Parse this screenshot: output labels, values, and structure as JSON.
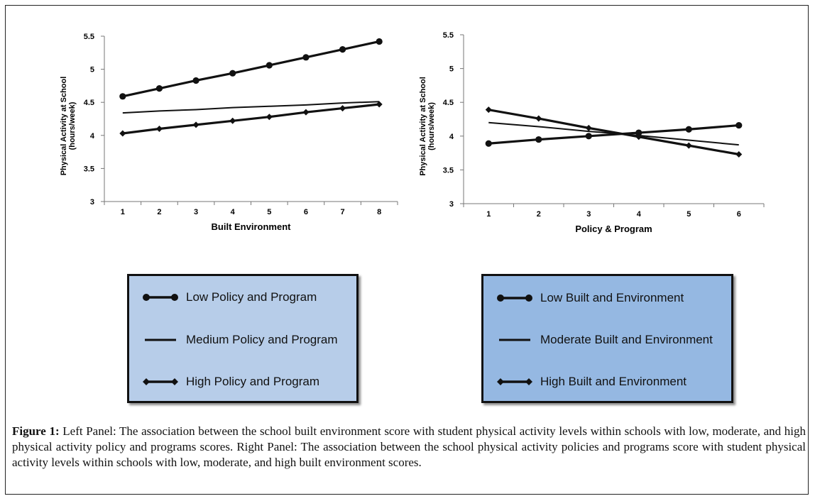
{
  "chart_data": [
    {
      "type": "line",
      "panel": "left",
      "title": "",
      "xlabel": "Built Environment",
      "ylabel_lines": [
        "Physical Activity at School",
        "(hours/week)"
      ],
      "x": [
        1,
        2,
        3,
        4,
        5,
        6,
        7,
        8
      ],
      "ylim": [
        3,
        5.5
      ],
      "yticks": [
        3,
        3.5,
        4,
        4.5,
        5,
        5.5
      ],
      "ytick_labels": [
        "3",
        "3.5",
        "4",
        "4.5",
        "5",
        "5.5"
      ],
      "grid": false,
      "series": [
        {
          "name": "Low Policy and Program",
          "marker": "circle",
          "values": [
            4.59,
            4.71,
            4.83,
            4.94,
            5.06,
            5.18,
            5.3,
            5.42
          ]
        },
        {
          "name": "Medium Policy and Program",
          "marker": "none",
          "values": [
            4.34,
            4.37,
            4.39,
            4.42,
            4.44,
            4.46,
            4.49,
            4.51
          ]
        },
        {
          "name": "High Policy and Program",
          "marker": "diamond",
          "values": [
            4.03,
            4.1,
            4.16,
            4.22,
            4.28,
            4.35,
            4.41,
            4.47
          ]
        }
      ]
    },
    {
      "type": "line",
      "panel": "right",
      "title": "",
      "xlabel": "Policy & Program",
      "ylabel_lines": [
        "Physical Activity at School",
        "(hours/week)"
      ],
      "x": [
        1,
        2,
        3,
        4,
        5,
        6
      ],
      "ylim": [
        3,
        5.5
      ],
      "yticks": [
        3,
        3.5,
        4,
        4.5,
        5,
        5.5
      ],
      "ytick_labels": [
        "3",
        "3.5",
        "4",
        "4.5",
        "5",
        "5.5"
      ],
      "grid": false,
      "series": [
        {
          "name": "Low Built and Environment",
          "marker": "circle",
          "values": [
            3.89,
            3.95,
            4.0,
            4.05,
            4.1,
            4.16
          ]
        },
        {
          "name": "Moderate Built and Environment",
          "marker": "none",
          "values": [
            4.2,
            4.14,
            4.07,
            4.01,
            3.94,
            3.87
          ]
        },
        {
          "name": "High Built and Environment",
          "marker": "diamond",
          "values": [
            4.39,
            4.26,
            4.12,
            3.99,
            3.86,
            3.73
          ]
        }
      ]
    }
  ],
  "legend_left": {
    "items": [
      "Low Policy and Program",
      "Medium Policy and Program",
      "High Policy and Program"
    ]
  },
  "legend_right": {
    "items": [
      "Low Built and Environment",
      "Moderate Built and Environment",
      "High Built and Environment"
    ]
  },
  "caption": {
    "label": "Figure 1:",
    "text": " Left Panel: The association between the school built environment score with student physical activity levels within schools with low, moderate, and high physical activity policy and programs scores. Right Panel: The association between the school physical activity policies and programs score with student physical activity levels within schools with low, moderate, and high built environment scores."
  },
  "colors": {
    "line": "#111111",
    "legend_left_bg": "#b7cde9",
    "legend_right_bg": "#95b8e2"
  }
}
